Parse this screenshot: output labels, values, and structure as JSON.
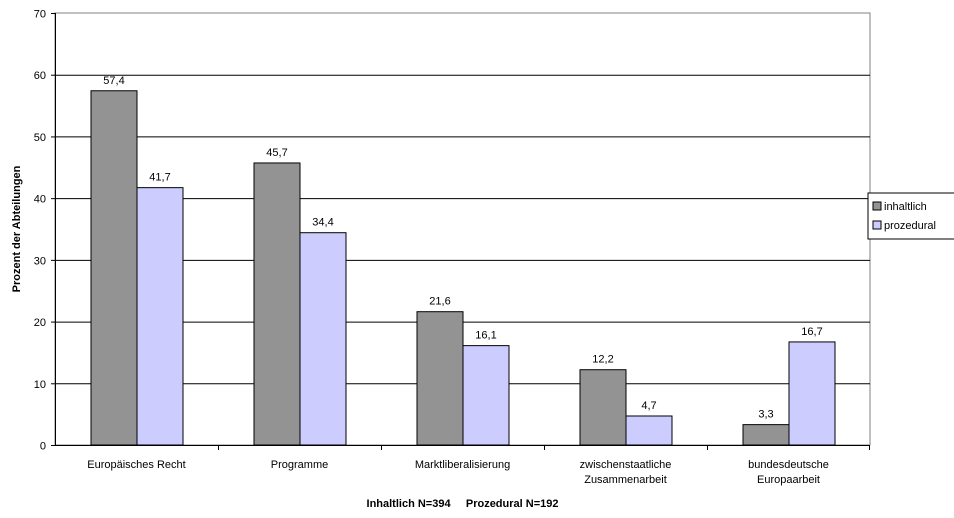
{
  "chart_data": {
    "type": "bar",
    "categories": [
      [
        "Europäisches Recht"
      ],
      [
        "Programme"
      ],
      [
        "Marktliberalisierung"
      ],
      [
        "zwischenstaatliche",
        "Zusammenarbeit"
      ],
      [
        "bundesdeutsche",
        "Europaarbeit"
      ]
    ],
    "series": [
      {
        "name": "inhaltlich",
        "values": [
          57.4,
          45.7,
          21.6,
          12.2,
          3.3
        ],
        "labels": [
          "57,4",
          "45,7",
          "21,6",
          "12,2",
          "3,3"
        ],
        "color": "#939393"
      },
      {
        "name": "prozedural",
        "values": [
          41.7,
          34.4,
          16.1,
          4.7,
          16.7
        ],
        "labels": [
          "41,7",
          "34,4",
          "16,1",
          "4,7",
          "16,7"
        ],
        "color": "#ccccff"
      }
    ],
    "title": "",
    "xlabel": "Inhaltlich N=394     Prozedural N=192",
    "ylabel": "Prozent der Abteilungen",
    "ylim": [
      0,
      70
    ],
    "yticks": [
      0,
      10,
      20,
      30,
      40,
      50,
      60,
      70
    ],
    "grid": true,
    "legend_position": "right"
  }
}
